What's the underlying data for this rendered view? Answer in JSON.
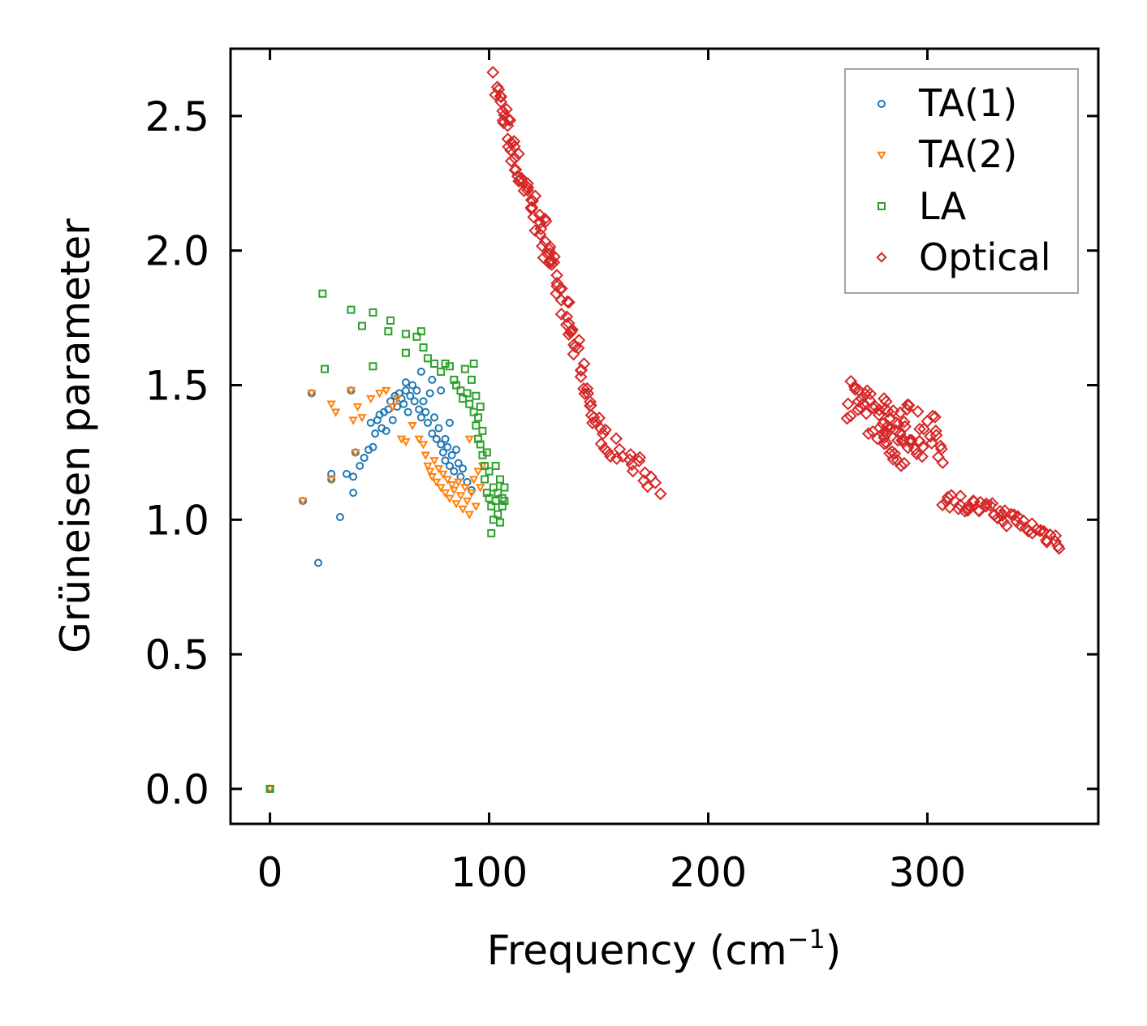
{
  "chart_data": {
    "type": "scatter",
    "xlabel": "Frequency (cm",
    "xlabel_sup": "−1",
    "xlabel_end": ")",
    "ylabel": "Grüneisen parameter",
    "xlim": [
      -18,
      378
    ],
    "ylim": [
      -0.13,
      2.75
    ],
    "xticks": [
      0,
      100,
      200,
      300
    ],
    "xtick_labels": [
      "0",
      "100",
      "200",
      "300"
    ],
    "yticks": [
      0.0,
      0.5,
      1.0,
      1.5,
      2.0,
      2.5
    ],
    "ytick_labels": [
      "0.0",
      "0.5",
      "1.0",
      "1.5",
      "2.0",
      "2.5"
    ],
    "legend_position": "top-right",
    "series": [
      {
        "name": "TA(1)",
        "marker": "circle",
        "color": "#1f77b4",
        "points": [
          [
            0,
            0.0
          ],
          [
            15,
            1.07
          ],
          [
            19,
            1.47
          ],
          [
            22,
            0.84
          ],
          [
            28,
            1.17
          ],
          [
            28,
            1.15
          ],
          [
            32,
            1.01
          ],
          [
            35,
            1.17
          ],
          [
            37,
            1.48
          ],
          [
            38,
            1.16
          ],
          [
            38,
            1.1
          ],
          [
            39,
            1.25
          ],
          [
            41,
            1.2
          ],
          [
            43,
            1.23
          ],
          [
            45,
            1.26
          ],
          [
            46,
            1.36
          ],
          [
            47,
            1.27
          ],
          [
            48,
            1.32
          ],
          [
            49,
            1.37
          ],
          [
            50,
            1.39
          ],
          [
            51,
            1.34
          ],
          [
            52,
            1.4
          ],
          [
            53,
            1.33
          ],
          [
            54,
            1.41
          ],
          [
            55,
            1.44
          ],
          [
            56,
            1.37
          ],
          [
            57,
            1.46
          ],
          [
            58,
            1.42
          ],
          [
            59,
            1.47
          ],
          [
            60,
            1.45
          ],
          [
            61,
            1.43
          ],
          [
            62,
            1.48
          ],
          [
            62,
            1.51
          ],
          [
            63,
            1.4
          ],
          [
            64,
            1.46
          ],
          [
            65,
            1.5
          ],
          [
            66,
            1.44
          ],
          [
            67,
            1.48
          ],
          [
            68,
            1.41
          ],
          [
            69,
            1.55
          ],
          [
            69,
            1.38
          ],
          [
            70,
            1.44
          ],
          [
            71,
            1.4
          ],
          [
            72,
            1.36
          ],
          [
            73,
            1.47
          ],
          [
            74,
            1.52
          ],
          [
            74,
            1.32
          ],
          [
            75,
            1.38
          ],
          [
            76,
            1.3
          ],
          [
            77,
            1.34
          ],
          [
            78,
            1.48
          ],
          [
            78,
            1.28
          ],
          [
            79,
            1.25
          ],
          [
            80,
            1.3
          ],
          [
            80,
            1.22
          ],
          [
            81,
            1.27
          ],
          [
            82,
            1.36
          ],
          [
            82,
            1.2
          ],
          [
            83,
            1.24
          ],
          [
            84,
            1.18
          ],
          [
            85,
            1.26
          ],
          [
            86,
            1.21
          ],
          [
            87,
            1.16
          ],
          [
            88,
            1.19
          ],
          [
            90,
            1.14
          ],
          [
            92,
            1.11
          ]
        ]
      },
      {
        "name": "TA(2)",
        "marker": "triangle",
        "color": "#ff7f0e",
        "points": [
          [
            0,
            0.0
          ],
          [
            15,
            1.07
          ],
          [
            19,
            1.47
          ],
          [
            28,
            1.15
          ],
          [
            28,
            1.43
          ],
          [
            30,
            1.4
          ],
          [
            37,
            1.48
          ],
          [
            38,
            1.37
          ],
          [
            39,
            1.25
          ],
          [
            40,
            1.42
          ],
          [
            42,
            1.38
          ],
          [
            46,
            1.45
          ],
          [
            50,
            1.47
          ],
          [
            53,
            1.48
          ],
          [
            56,
            1.42
          ],
          [
            58,
            1.45
          ],
          [
            60,
            1.3
          ],
          [
            62,
            1.29
          ],
          [
            65,
            1.35
          ],
          [
            68,
            1.3
          ],
          [
            70,
            1.28
          ],
          [
            71,
            1.24
          ],
          [
            72,
            1.2
          ],
          [
            73,
            1.18
          ],
          [
            74,
            1.16
          ],
          [
            75,
            1.22
          ],
          [
            76,
            1.14
          ],
          [
            77,
            1.19
          ],
          [
            78,
            1.12
          ],
          [
            79,
            1.17
          ],
          [
            80,
            1.1
          ],
          [
            81,
            1.15
          ],
          [
            82,
            1.08
          ],
          [
            83,
            1.13
          ],
          [
            84,
            1.11
          ],
          [
            85,
            1.06
          ],
          [
            86,
            1.14
          ],
          [
            87,
            1.09
          ],
          [
            88,
            1.04
          ],
          [
            89,
            1.12
          ],
          [
            90,
            1.07
          ],
          [
            91,
            1.3
          ],
          [
            91,
            1.02
          ],
          [
            92,
            1.1
          ],
          [
            93,
            1.15
          ],
          [
            94,
            1.05
          ],
          [
            95,
            1.18
          ],
          [
            96,
            1.12
          ],
          [
            97,
            1.2
          ]
        ]
      },
      {
        "name": "LA",
        "marker": "square",
        "color": "#2ca02c",
        "points": [
          [
            0,
            0.0
          ],
          [
            24,
            1.84
          ],
          [
            25,
            1.56
          ],
          [
            37,
            1.78
          ],
          [
            42,
            1.72
          ],
          [
            47,
            1.77
          ],
          [
            47,
            1.57
          ],
          [
            54,
            1.7
          ],
          [
            55,
            1.74
          ],
          [
            62,
            1.62
          ],
          [
            62,
            1.69
          ],
          [
            67,
            1.68
          ],
          [
            69,
            1.7
          ],
          [
            70,
            1.64
          ],
          [
            72,
            1.6
          ],
          [
            75,
            1.58
          ],
          [
            78,
            1.55
          ],
          [
            80,
            1.58
          ],
          [
            82,
            1.57
          ],
          [
            84,
            1.52
          ],
          [
            85,
            1.5
          ],
          [
            87,
            1.48
          ],
          [
            88,
            1.45
          ],
          [
            89,
            1.56
          ],
          [
            90,
            1.47
          ],
          [
            91,
            1.43
          ],
          [
            92,
            1.52
          ],
          [
            93,
            1.58
          ],
          [
            93,
            1.4
          ],
          [
            94,
            1.46
          ],
          [
            94,
            1.35
          ],
          [
            95,
            1.38
          ],
          [
            95,
            1.3
          ],
          [
            96,
            1.42
          ],
          [
            96,
            1.28
          ],
          [
            97,
            1.33
          ],
          [
            97,
            1.24
          ],
          [
            98,
            1.2
          ],
          [
            98,
            1.15
          ],
          [
            99,
            1.1
          ],
          [
            99,
            1.25
          ],
          [
            100,
            1.08
          ],
          [
            100,
            1.18
          ],
          [
            101,
            1.05
          ],
          [
            101,
            0.95
          ],
          [
            102,
            1.12
          ],
          [
            102,
            1.0
          ],
          [
            103,
            1.07
          ],
          [
            103,
            1.2
          ],
          [
            104,
            1.1
          ],
          [
            104,
            1.02
          ],
          [
            105,
            1.15
          ],
          [
            105,
            0.99
          ],
          [
            106,
            1.08
          ],
          [
            106,
            1.05
          ],
          [
            107,
            1.12
          ],
          [
            107,
            1.07
          ]
        ]
      },
      {
        "name": "Optical",
        "marker": "diamond",
        "color": "#d62728",
        "segments": [
          {
            "x0": 103,
            "y0": 2.62,
            "x1": 112,
            "y1": 2.33,
            "n": 24,
            "spread": 0.05
          },
          {
            "x0": 112,
            "y0": 2.33,
            "x1": 125,
            "y1": 2.06,
            "n": 26,
            "spread": 0.06
          },
          {
            "x0": 125,
            "y0": 2.06,
            "x1": 137,
            "y1": 1.7,
            "n": 28,
            "spread": 0.06
          },
          {
            "x0": 137,
            "y0": 1.7,
            "x1": 150,
            "y1": 1.32,
            "n": 24,
            "spread": 0.05
          },
          {
            "x0": 150,
            "y0": 1.32,
            "x1": 177,
            "y1": 1.13,
            "n": 22,
            "spread": 0.04
          },
          {
            "x0": 264,
            "y0": 1.46,
            "x1": 290,
            "y1": 1.26,
            "n": 45,
            "spread": 0.08
          },
          {
            "x0": 280,
            "y0": 1.4,
            "x1": 307,
            "y1": 1.28,
            "n": 40,
            "spread": 0.09
          },
          {
            "x0": 308,
            "y0": 1.08,
            "x1": 330,
            "y1": 1.03,
            "n": 22,
            "spread": 0.03
          },
          {
            "x0": 330,
            "y0": 1.03,
            "x1": 361,
            "y1": 0.92,
            "n": 28,
            "spread": 0.03
          }
        ]
      }
    ]
  }
}
